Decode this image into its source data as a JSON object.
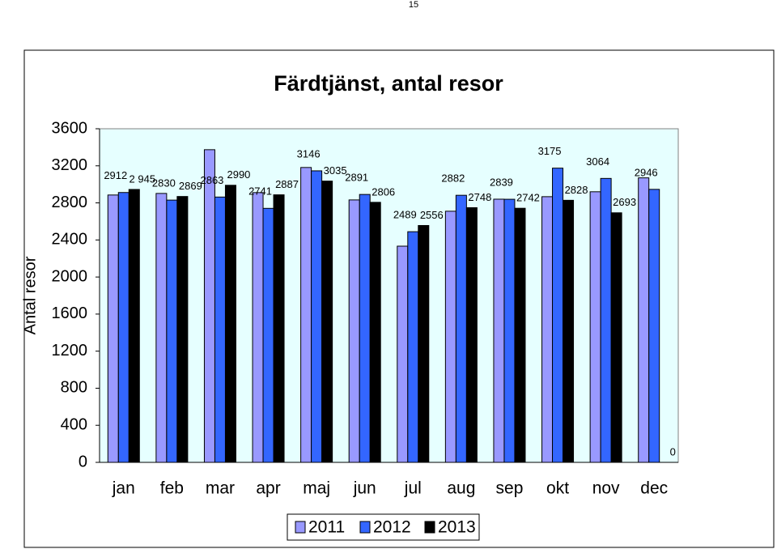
{
  "page_number": "15",
  "chart_data": {
    "type": "bar",
    "title": "Färdtjänst, antal resor",
    "y_label": "Antal resor",
    "categories": [
      "jan",
      "feb",
      "mar",
      "apr",
      "maj",
      "jun",
      "jul",
      "aug",
      "sep",
      "okt",
      "nov",
      "dec"
    ],
    "series": [
      {
        "name": "2011",
        "color": "#9999ff",
        "values": [
          2885,
          2902,
          3374,
          2911,
          3182,
          2832,
          2333,
          2710,
          2840,
          2867,
          2920,
          3070
        ]
      },
      {
        "name": "2012",
        "color": "#3366ff",
        "values": [
          2912,
          2830,
          2863,
          2741,
          3146,
          2891,
          2489,
          2882,
          2839,
          3175,
          3064,
          2946
        ]
      },
      {
        "name": "2013",
        "color": "#000000",
        "values": [
          2945,
          2869,
          2990,
          2887,
          3035,
          2806,
          2556,
          2748,
          2742,
          2828,
          2693,
          0
        ],
        "value_labels": [
          "2 945",
          "2869",
          "2990",
          "2887",
          "3035",
          "2806",
          "2556",
          "2748",
          "2742",
          "2828",
          "2693",
          "0"
        ]
      }
    ],
    "labeled_series": [
      1,
      2
    ],
    "ylim": [
      0,
      3600
    ],
    "yticks": [
      0,
      400,
      800,
      1200,
      1600,
      2000,
      2400,
      2800,
      3200,
      3600
    ],
    "legend": "bottom"
  }
}
